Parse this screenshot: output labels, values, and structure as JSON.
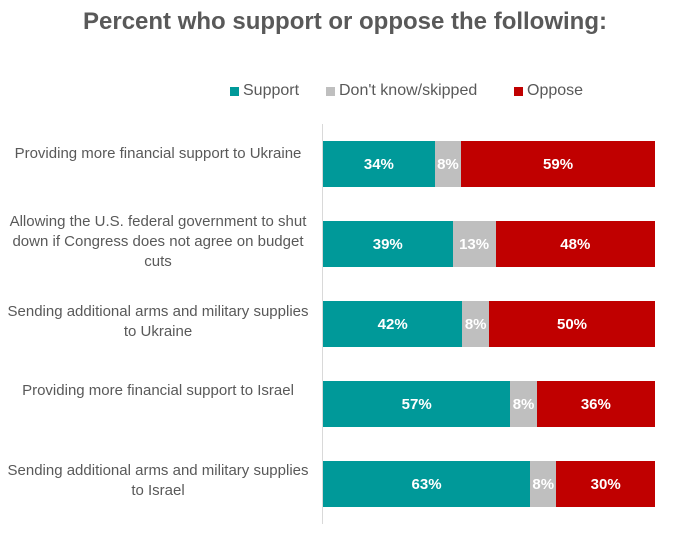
{
  "chart_data": {
    "type": "bar",
    "orientation": "horizontal",
    "stacked": true,
    "title": "Percent who support or oppose the following:",
    "legend_position": "top",
    "categories": [
      "Providing more financial support to Ukraine",
      "Allowing the U.S. federal government to shut down if Congress does not agree on budget cuts",
      "Sending additional arms and military supplies to Ukraine",
      "Providing more financial support to Israel",
      "Sending additional arms and military supplies to Israel"
    ],
    "series": [
      {
        "name": "Support",
        "color": "#009999",
        "values": [
          34,
          39,
          42,
          57,
          63
        ],
        "labels": [
          "34%",
          "39%",
          "42%",
          "57%",
          "63%"
        ]
      },
      {
        "name": "Don't know/skipped",
        "color": "#BFBFBF",
        "values": [
          8,
          13,
          8,
          8,
          8
        ],
        "labels": [
          "8%",
          "13%",
          "8%",
          "8%",
          "8%"
        ]
      },
      {
        "name": "Oppose",
        "color": "#C00000",
        "values": [
          59,
          48,
          50,
          36,
          30
        ],
        "labels": [
          "59%",
          "48%",
          "50%",
          "36%",
          "30%"
        ]
      }
    ],
    "xlim": [
      0,
      100
    ]
  }
}
